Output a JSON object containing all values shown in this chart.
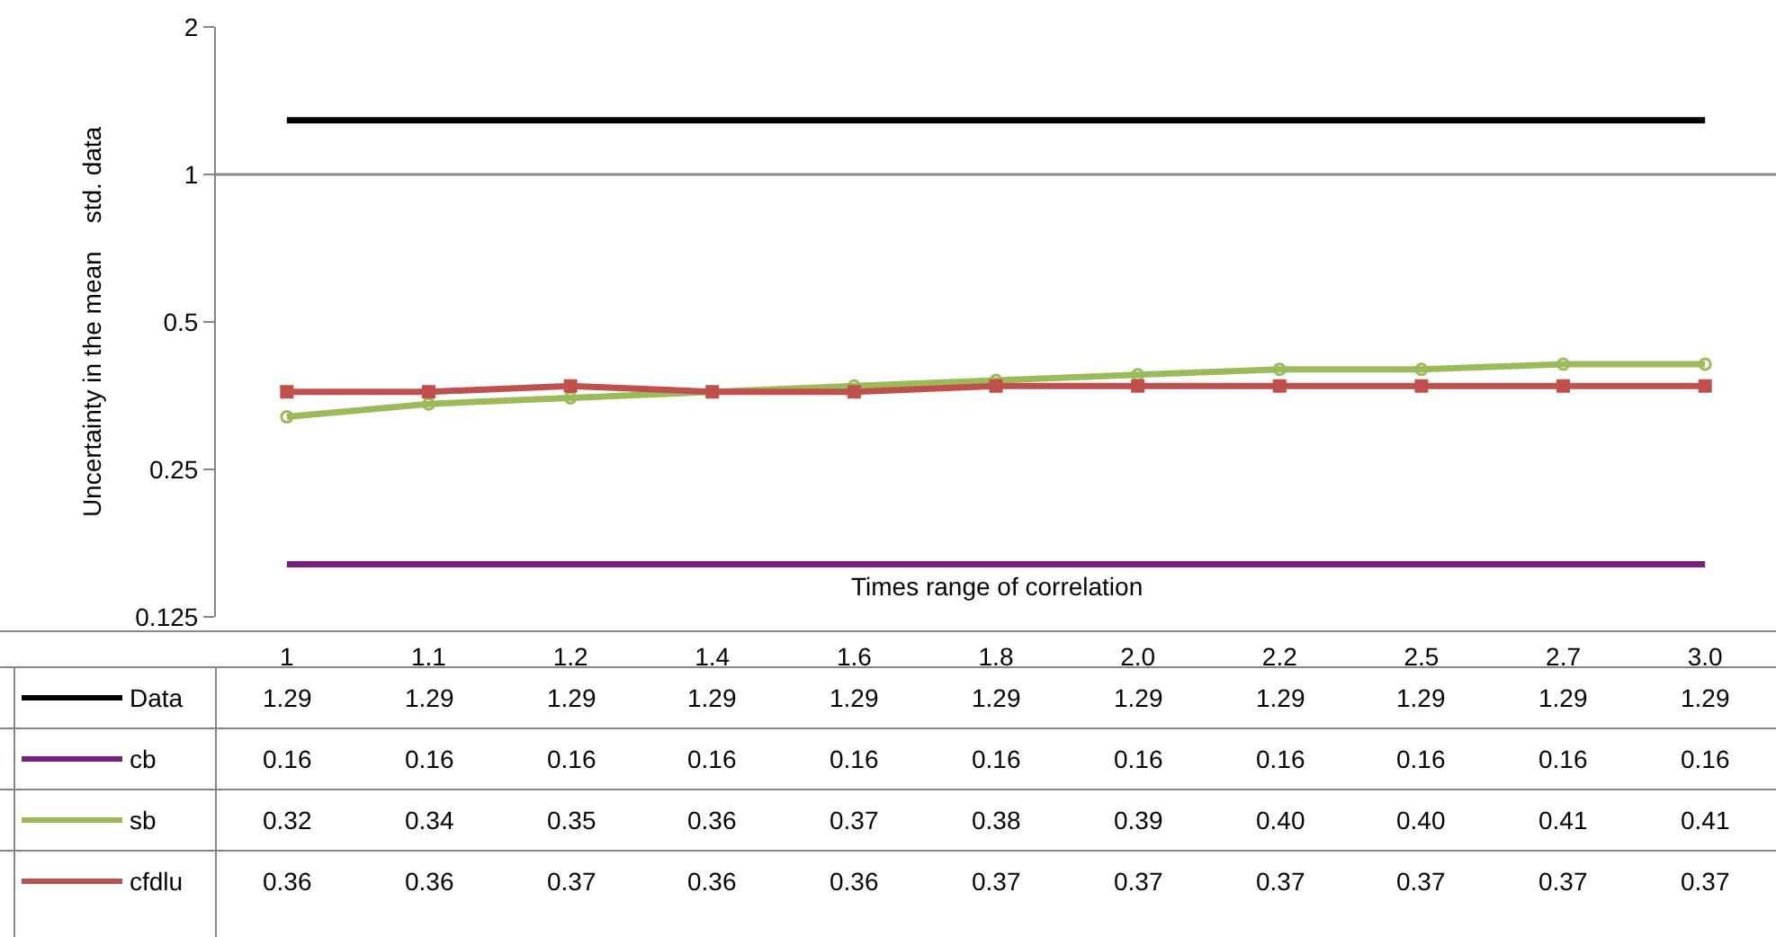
{
  "chart_data": {
    "type": "line",
    "xlabel": "Times range of correlation",
    "ylabel": "Uncertainty in the mean    std. data",
    "categories": [
      "1",
      "1.1",
      "1.2",
      "1.4",
      "1.6",
      "1.8",
      "2.0",
      "2.2",
      "2.5",
      "2.7",
      "3.0"
    ],
    "log": "y",
    "ylim": [
      0.125,
      2
    ],
    "yticks": [
      0.125,
      0.25,
      0.5,
      1,
      2
    ],
    "legend": "bottom left",
    "ref_lines": [
      {
        "axis": "y",
        "value": 1,
        "color": "#868686"
      }
    ],
    "series": [
      {
        "name": "Data",
        "color": "#000000",
        "marker": "none",
        "values": [
          1.29,
          1.29,
          1.29,
          1.29,
          1.29,
          1.29,
          1.29,
          1.29,
          1.29,
          1.29,
          1.29
        ],
        "value_labels": [
          "1.29",
          "1.29",
          "1.29",
          "1.29",
          "1.29",
          "1.29",
          "1.29",
          "1.29",
          "1.29",
          "1.29",
          "1.29"
        ]
      },
      {
        "name": "cb",
        "color": "#7b1f85",
        "marker": "none",
        "values": [
          0.16,
          0.16,
          0.16,
          0.16,
          0.16,
          0.16,
          0.16,
          0.16,
          0.16,
          0.16,
          0.16
        ],
        "value_labels": [
          "0.16",
          "0.16",
          "0.16",
          "0.16",
          "0.16",
          "0.16",
          "0.16",
          "0.16",
          "0.16",
          "0.16",
          "0.16"
        ]
      },
      {
        "name": "sb",
        "color": "#9bbb59",
        "marker": "circle",
        "values": [
          0.32,
          0.34,
          0.35,
          0.36,
          0.37,
          0.38,
          0.39,
          0.4,
          0.4,
          0.41,
          0.41
        ],
        "value_labels": [
          "0.32",
          "0.34",
          "0.35",
          "0.36",
          "0.37",
          "0.38",
          "0.39",
          "0.40",
          "0.40",
          "0.41",
          "0.41"
        ]
      },
      {
        "name": "cfdlu",
        "color": "#c0504d",
        "marker": "square",
        "values": [
          0.36,
          0.36,
          0.37,
          0.36,
          0.36,
          0.37,
          0.37,
          0.37,
          0.37,
          0.37,
          0.37
        ],
        "value_labels": [
          "0.36",
          "0.36",
          "0.37",
          "0.36",
          "0.36",
          "0.37",
          "0.37",
          "0.37",
          "0.37",
          "0.37",
          "0.37"
        ]
      }
    ]
  }
}
